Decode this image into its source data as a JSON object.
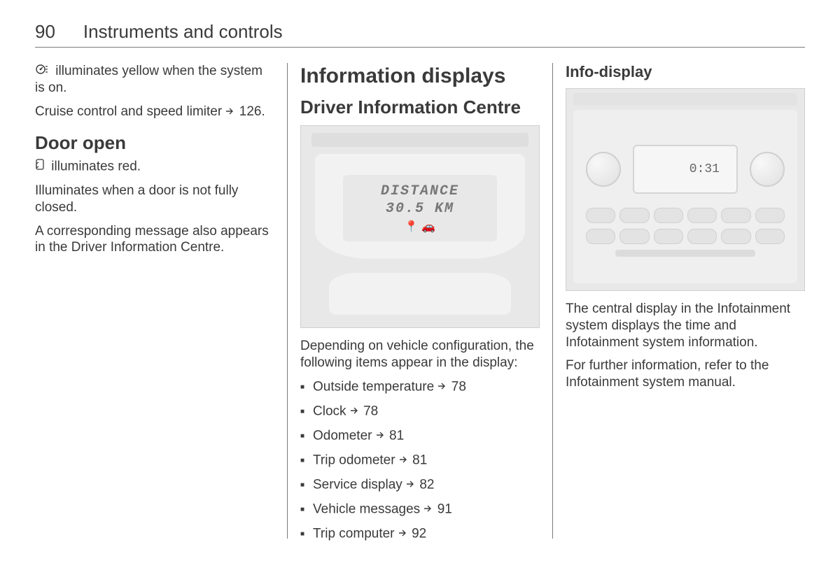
{
  "header": {
    "page_number": "90",
    "chapter": "Instruments and controls"
  },
  "col1": {
    "p1_icon": "cruise-control-icon",
    "p1": " illuminates yellow when the system is on.",
    "p2_prefix": "Cruise control and speed limiter ",
    "p2_ref": "126",
    "p2_suffix": ".",
    "h2": "Door open",
    "p3_icon": "door-open-icon",
    "p3": " illuminates red.",
    "p4": "Illuminates when a door is not fully closed.",
    "p5": "A corresponding message also appears in the Driver Information Centre."
  },
  "col2": {
    "h1": "Information displays",
    "h2": "Driver Information Centre",
    "figure": {
      "line1": "DISTANCE",
      "line2": "30.5 KM",
      "icons": "📍 🚗"
    },
    "intro": "Depending on vehicle configuration, the following items appear in the display:",
    "items": [
      {
        "label": "Outside temperature ",
        "ref": "78"
      },
      {
        "label": "Clock ",
        "ref": "78"
      },
      {
        "label": "Odometer ",
        "ref": "81"
      },
      {
        "label": "Trip odometer ",
        "ref": "81"
      },
      {
        "label": "Service display ",
        "ref": "82"
      },
      {
        "label": "Vehicle messages ",
        "ref": "91"
      },
      {
        "label": "Trip computer ",
        "ref": "92"
      }
    ]
  },
  "col3": {
    "h3": "Info-display",
    "figure": {
      "time": "0:31"
    },
    "p1": "The central display in the Infotainment system displays the time and Infotainment system information.",
    "p2": "For further information, refer to the Infotainment system manual."
  },
  "style": {
    "text_color": "#3a3a3a",
    "rule_color": "#7a7a7a",
    "figure_bg": "#e8e8e8",
    "body_font_size": 19,
    "h1_font_size": 30,
    "h2_font_size": 26,
    "h3_font_size": 22
  }
}
